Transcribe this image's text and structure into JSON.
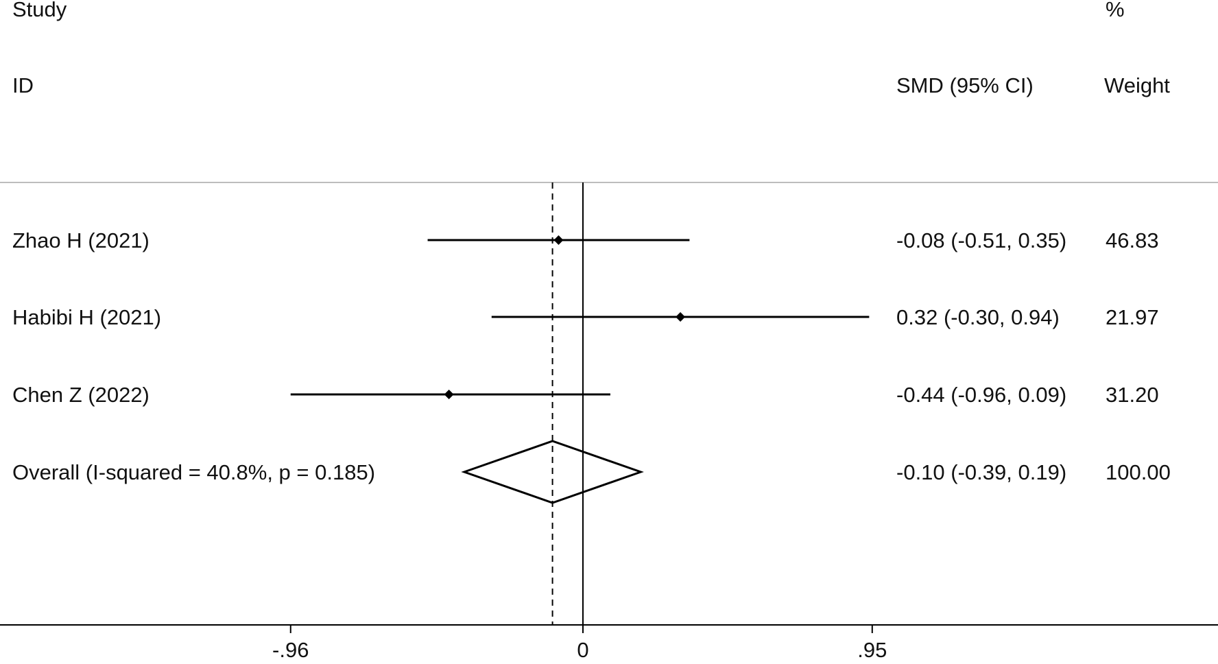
{
  "header": {
    "study_line1": "Study",
    "study_line2": "ID",
    "effect_label": "SMD (95% CI)",
    "weight_line1": "%",
    "weight_line2": "Weight"
  },
  "chart_data": {
    "type": "forest",
    "measure": "SMD",
    "xlim": [
      -1.12,
      1.12
    ],
    "xticks": [
      -0.96,
      0,
      0.95
    ],
    "xtick_labels": [
      "-.96",
      "0",
      ".95"
    ],
    "null_value": 0,
    "pooled_estimate": -0.1,
    "studies": [
      {
        "id": "Zhao H (2021)",
        "est": -0.08,
        "lo": -0.51,
        "hi": 0.35,
        "text": "-0.08 (-0.51, 0.35)",
        "weight": "46.83"
      },
      {
        "id": "Habibi H (2021)",
        "est": 0.32,
        "lo": -0.3,
        "hi": 0.94,
        "text": "0.32 (-0.30, 0.94)",
        "weight": "21.97"
      },
      {
        "id": "Chen Z (2022)",
        "est": -0.44,
        "lo": -0.96,
        "hi": 0.09,
        "text": "-0.44 (-0.96, 0.09)",
        "weight": "31.20"
      }
    ],
    "overall": {
      "id": "Overall  (I-squared = 40.8%, p = 0.185)",
      "est": -0.1,
      "lo": -0.39,
      "hi": 0.19,
      "text": "-0.10 (-0.39, 0.19)",
      "weight": "100.00"
    }
  }
}
